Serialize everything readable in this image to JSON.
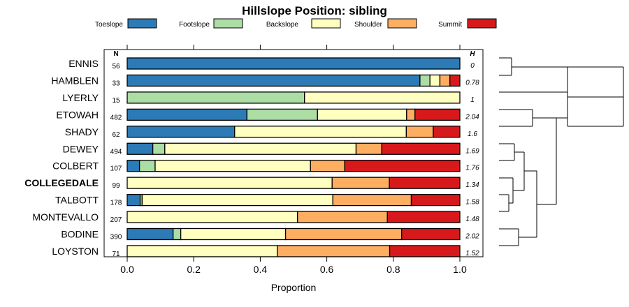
{
  "chart_data": {
    "type": "bar",
    "orientation": "horizontal",
    "stacked": true,
    "title": "Hillslope Position: sibling",
    "xlabel": "Proportion",
    "ylabel": "",
    "xlim": [
      0,
      1
    ],
    "xticks": [
      "0.0",
      "0.2",
      "0.4",
      "0.6",
      "0.8",
      "1.0"
    ],
    "n_header": "N",
    "h_header": "H",
    "highlighted": "COLLEGEDALE",
    "legend_placement": "top",
    "series": [
      {
        "name": "Toeslope",
        "color": "#2C7BB6"
      },
      {
        "name": "Footslope",
        "color": "#ABDDA4"
      },
      {
        "name": "Backslope",
        "color": "#FFFFBF"
      },
      {
        "name": "Shoulder",
        "color": "#FDAE61"
      },
      {
        "name": "Summit",
        "color": "#D7191C"
      }
    ],
    "rows": [
      {
        "name": "ENNIS",
        "n": "56",
        "h": "0",
        "values": [
          1.0,
          0.0,
          0.0,
          0.0,
          0.0
        ]
      },
      {
        "name": "HAMBLEN",
        "n": "33",
        "h": "0.78",
        "values": [
          0.88,
          0.03,
          0.03,
          0.03,
          0.03
        ]
      },
      {
        "name": "LYERLY",
        "n": "15",
        "h": "1",
        "values": [
          0.0,
          0.533,
          0.467,
          0.0,
          0.0
        ]
      },
      {
        "name": "ETOWAH",
        "n": "482",
        "h": "2.04",
        "values": [
          0.36,
          0.212,
          0.268,
          0.025,
          0.135
        ]
      },
      {
        "name": "SHADY",
        "n": "62",
        "h": "1.6",
        "values": [
          0.323,
          0.0,
          0.516,
          0.081,
          0.08
        ]
      },
      {
        "name": "DEWEY",
        "n": "494",
        "h": "1.69",
        "values": [
          0.077,
          0.036,
          0.575,
          0.077,
          0.235
        ]
      },
      {
        "name": "COLBERT",
        "n": "107",
        "h": "1.76",
        "values": [
          0.037,
          0.047,
          0.467,
          0.103,
          0.346
        ]
      },
      {
        "name": "COLLEGEDALE",
        "n": "99",
        "h": "1.34",
        "values": [
          0.0,
          0.0,
          0.616,
          0.172,
          0.212
        ]
      },
      {
        "name": "TALBOTT",
        "n": "178",
        "h": "1.58",
        "values": [
          0.039,
          0.006,
          0.573,
          0.236,
          0.146
        ]
      },
      {
        "name": "MONTEVALLO",
        "n": "207",
        "h": "1.48",
        "values": [
          0.0,
          0.0,
          0.512,
          0.27,
          0.218
        ]
      },
      {
        "name": "BODINE",
        "n": "390",
        "h": "2.02",
        "values": [
          0.138,
          0.023,
          0.315,
          0.349,
          0.175
        ]
      },
      {
        "name": "LOYSTON",
        "n": "71",
        "h": "1.52",
        "values": [
          0.0,
          0.0,
          0.451,
          0.338,
          0.211
        ]
      }
    ]
  }
}
